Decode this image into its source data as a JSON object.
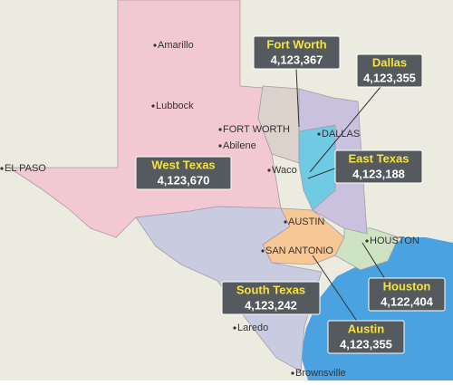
{
  "regions": [
    {
      "name": "Fort Worth",
      "population": "4,123,367"
    },
    {
      "name": "Dallas",
      "population": "4,123,355"
    },
    {
      "name": "East Texas",
      "population": "4,123,188"
    },
    {
      "name": "West Texas",
      "population": "4,123,670"
    },
    {
      "name": "South Texas",
      "population": "4,123,242"
    },
    {
      "name": "Austin",
      "population": "4,123,355"
    },
    {
      "name": "Houston",
      "population": "4,122,404"
    }
  ],
  "cities": [
    "Amarillo",
    "Lubbock",
    "FORT WORTH",
    "DALLAS",
    "Abilene",
    "Waco",
    "EL PASO",
    "AUSTIN",
    "SAN ANTONIO",
    "HOUSTON",
    "Laredo",
    "Brownsville"
  ]
}
